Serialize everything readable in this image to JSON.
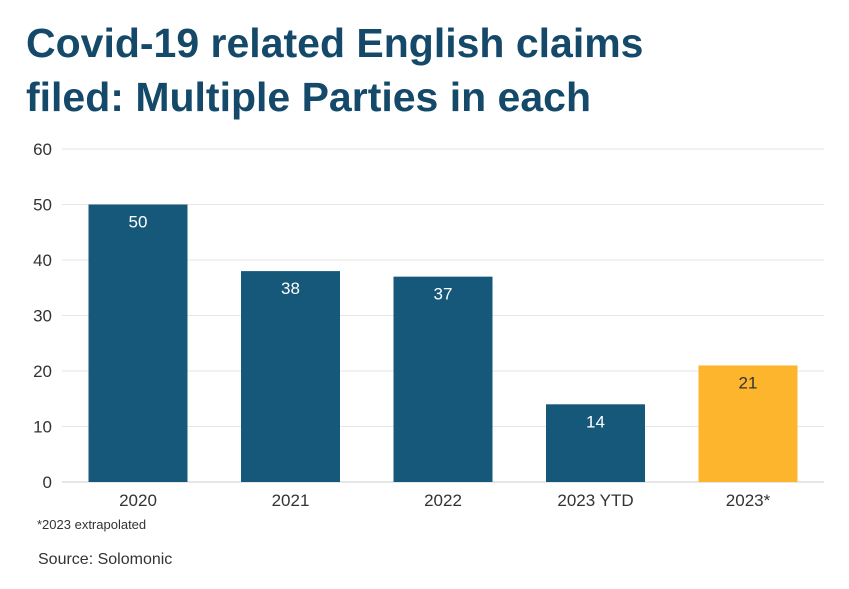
{
  "title": {
    "line1": "Covid-19 related English claims",
    "line2": "filed: Multiple Parties in each"
  },
  "footnote": "*2023 extrapolated",
  "source": "Source: Solomonic",
  "colors": {
    "title": "#15496a",
    "bar_primary": "#15587a",
    "bar_highlight": "#fdb52e",
    "grid": "#e6e6e6",
    "axis": "#cccccc",
    "text": "#333333"
  },
  "chart_data": {
    "type": "bar",
    "categories": [
      "2020",
      "2021",
      "2022",
      "2023 YTD",
      "2023*"
    ],
    "values": [
      50,
      38,
      37,
      14,
      21
    ],
    "data_labels": [
      "50",
      "38",
      "37",
      "14",
      "21"
    ],
    "highlight": [
      false,
      false,
      false,
      false,
      true
    ],
    "ylim": [
      0,
      60
    ],
    "yticks": [
      0,
      10,
      20,
      30,
      40,
      50,
      60
    ],
    "grid": true,
    "legend": "none"
  }
}
